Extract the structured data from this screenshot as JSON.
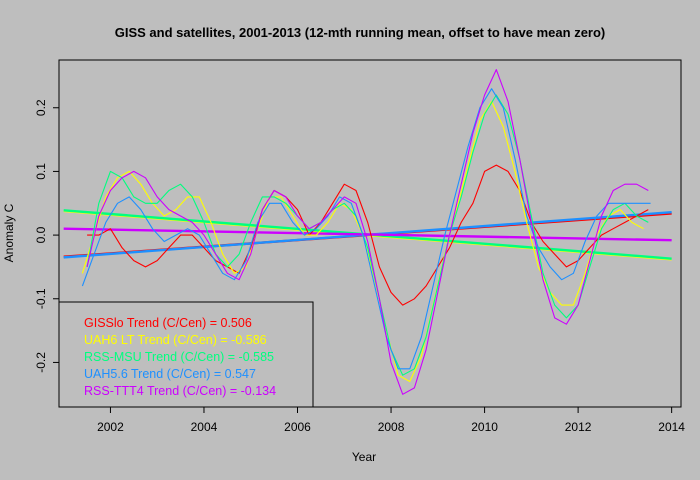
{
  "chart_data": {
    "type": "line",
    "title": "GISS and satellites, 2001-2013 (12-mth running mean, offset to have mean zero)",
    "xlabel": "Year",
    "ylabel": "Anomaly C",
    "xlim": [
      2000.9,
      2014.2
    ],
    "ylim": [
      -0.27,
      0.275
    ],
    "xticks": [
      2002,
      2004,
      2006,
      2008,
      2010,
      2012,
      2014
    ],
    "yticks": [
      -0.2,
      -0.1,
      0.0,
      0.1,
      0.2
    ],
    "ytick_labels": [
      "-0.2",
      "-0.1",
      "0.0",
      "0.1",
      "0.2"
    ],
    "legend_position": "bottom-left",
    "series": [
      {
        "name": "GISSlo Trend (C/Cen) = 0.506",
        "color": "#ff0000",
        "x": [
          2001.5,
          2001.75,
          2002.0,
          2002.25,
          2002.5,
          2002.75,
          2003.0,
          2003.25,
          2003.5,
          2003.75,
          2004.0,
          2004.25,
          2004.5,
          2004.75,
          2005.0,
          2005.25,
          2005.5,
          2005.75,
          2006.0,
          2006.25,
          2006.5,
          2006.75,
          2007.0,
          2007.25,
          2007.5,
          2007.75,
          2008.0,
          2008.25,
          2008.5,
          2008.75,
          2009.0,
          2009.25,
          2009.5,
          2009.75,
          2010.0,
          2010.25,
          2010.5,
          2010.75,
          2011.0,
          2011.25,
          2011.5,
          2011.75,
          2012.0,
          2012.25,
          2012.5,
          2012.75,
          2013.0,
          2013.25,
          2013.5
        ],
        "y": [
          0.0,
          0.0,
          0.01,
          -0.02,
          -0.04,
          -0.05,
          -0.04,
          -0.02,
          0.0,
          0.0,
          -0.02,
          -0.04,
          -0.05,
          -0.06,
          -0.02,
          0.04,
          0.07,
          0.06,
          0.04,
          0.0,
          0.02,
          0.05,
          0.08,
          0.07,
          0.02,
          -0.05,
          -0.09,
          -0.11,
          -0.1,
          -0.08,
          -0.05,
          -0.02,
          0.02,
          0.05,
          0.1,
          0.11,
          0.1,
          0.07,
          0.02,
          -0.01,
          -0.03,
          -0.05,
          -0.04,
          -0.02,
          0.0,
          0.01,
          0.02,
          0.03,
          0.04
        ]
      },
      {
        "name": "UAH6 LT Trend (C/Cen) = -0.586",
        "color": "#ffff00",
        "x": [
          2001.4,
          2001.65,
          2001.9,
          2002.15,
          2002.4,
          2002.65,
          2002.9,
          2003.15,
          2003.4,
          2003.65,
          2003.9,
          2004.15,
          2004.4,
          2004.65,
          2004.9,
          2005.15,
          2005.4,
          2005.65,
          2005.9,
          2006.15,
          2006.4,
          2006.65,
          2006.9,
          2007.15,
          2007.4,
          2007.65,
          2007.9,
          2008.15,
          2008.4,
          2008.65,
          2008.9,
          2009.15,
          2009.4,
          2009.65,
          2009.9,
          2010.15,
          2010.4,
          2010.65,
          2010.9,
          2011.15,
          2011.4,
          2011.65,
          2011.9,
          2012.15,
          2012.4,
          2012.65,
          2012.9,
          2013.15,
          2013.4
        ],
        "y": [
          -0.06,
          0.0,
          0.06,
          0.09,
          0.1,
          0.08,
          0.05,
          0.03,
          0.04,
          0.06,
          0.06,
          0.02,
          -0.03,
          -0.06,
          -0.05,
          0.01,
          0.06,
          0.06,
          0.03,
          0.0,
          0.0,
          0.02,
          0.05,
          0.04,
          0.0,
          -0.07,
          -0.15,
          -0.22,
          -0.23,
          -0.19,
          -0.11,
          -0.03,
          0.04,
          0.11,
          0.18,
          0.21,
          0.17,
          0.1,
          0.02,
          -0.05,
          -0.09,
          -0.11,
          -0.11,
          -0.06,
          0.0,
          0.03,
          0.04,
          0.02,
          0.01
        ]
      },
      {
        "name": "RSS-MSU Trend (C/Cen) = -0.585",
        "color": "#00ff7f",
        "x": [
          2001.5,
          2001.75,
          2002.0,
          2002.25,
          2002.5,
          2002.75,
          2003.0,
          2003.25,
          2003.5,
          2003.75,
          2004.0,
          2004.25,
          2004.5,
          2004.75,
          2005.0,
          2005.25,
          2005.5,
          2005.75,
          2006.0,
          2006.25,
          2006.5,
          2006.75,
          2007.0,
          2007.25,
          2007.5,
          2007.75,
          2008.0,
          2008.25,
          2008.5,
          2008.75,
          2009.0,
          2009.25,
          2009.5,
          2009.75,
          2010.0,
          2010.25,
          2010.5,
          2010.75,
          2011.0,
          2011.25,
          2011.5,
          2011.75,
          2012.0,
          2012.25,
          2012.5,
          2012.75,
          2013.0,
          2013.25,
          2013.5
        ],
        "y": [
          -0.05,
          0.05,
          0.1,
          0.09,
          0.06,
          0.05,
          0.05,
          0.07,
          0.08,
          0.06,
          0.02,
          -0.03,
          -0.05,
          -0.03,
          0.02,
          0.06,
          0.06,
          0.05,
          0.03,
          0.01,
          0.02,
          0.04,
          0.05,
          0.03,
          -0.02,
          -0.1,
          -0.18,
          -0.22,
          -0.21,
          -0.16,
          -0.08,
          0.0,
          0.06,
          0.13,
          0.19,
          0.22,
          0.19,
          0.12,
          0.03,
          -0.06,
          -0.11,
          -0.13,
          -0.11,
          -0.05,
          0.01,
          0.04,
          0.05,
          0.03,
          0.02
        ]
      },
      {
        "name": "UAH5.6 Trend (C/Cen) = 0.547",
        "color": "#1e90ff",
        "x": [
          2001.4,
          2001.65,
          2001.9,
          2002.15,
          2002.4,
          2002.65,
          2002.9,
          2003.15,
          2003.4,
          2003.65,
          2003.9,
          2004.15,
          2004.4,
          2004.65,
          2004.9,
          2005.15,
          2005.4,
          2005.65,
          2005.9,
          2006.15,
          2006.4,
          2006.65,
          2006.9,
          2007.15,
          2007.4,
          2007.65,
          2007.9,
          2008.15,
          2008.4,
          2008.65,
          2008.9,
          2009.15,
          2009.4,
          2009.65,
          2009.9,
          2010.15,
          2010.4,
          2010.65,
          2010.9,
          2011.15,
          2011.4,
          2011.65,
          2011.9,
          2012.15,
          2012.4,
          2012.65,
          2012.9,
          2013.15,
          2013.4,
          2013.55
        ],
        "y": [
          -0.08,
          -0.03,
          0.02,
          0.05,
          0.06,
          0.04,
          0.01,
          -0.01,
          0.0,
          0.01,
          0.0,
          -0.03,
          -0.06,
          -0.07,
          -0.04,
          0.02,
          0.05,
          0.05,
          0.02,
          0.0,
          0.01,
          0.03,
          0.06,
          0.05,
          0.0,
          -0.08,
          -0.16,
          -0.21,
          -0.21,
          -0.16,
          -0.08,
          0.0,
          0.07,
          0.14,
          0.2,
          0.23,
          0.2,
          0.12,
          0.03,
          -0.02,
          -0.05,
          -0.07,
          -0.06,
          -0.01,
          0.03,
          0.05,
          0.05,
          0.05,
          0.05,
          0.05
        ]
      },
      {
        "name": "RSS-TTT4 Trend (C/Cen) = -0.134",
        "color": "#cc00ff",
        "x": [
          2001.5,
          2001.75,
          2002.0,
          2002.25,
          2002.5,
          2002.75,
          2003.0,
          2003.25,
          2003.5,
          2003.75,
          2004.0,
          2004.25,
          2004.5,
          2004.75,
          2005.0,
          2005.25,
          2005.5,
          2005.75,
          2006.0,
          2006.25,
          2006.5,
          2006.75,
          2007.0,
          2007.25,
          2007.5,
          2007.75,
          2008.0,
          2008.25,
          2008.5,
          2008.75,
          2009.0,
          2009.25,
          2009.5,
          2009.75,
          2010.0,
          2010.25,
          2010.5,
          2010.75,
          2011.0,
          2011.25,
          2011.5,
          2011.75,
          2012.0,
          2012.25,
          2012.5,
          2012.75,
          2013.0,
          2013.25,
          2013.5
        ],
        "y": [
          -0.05,
          0.03,
          0.07,
          0.09,
          0.1,
          0.09,
          0.06,
          0.04,
          0.03,
          0.02,
          0.0,
          -0.03,
          -0.06,
          -0.07,
          -0.03,
          0.04,
          0.07,
          0.06,
          0.03,
          0.01,
          0.02,
          0.04,
          0.06,
          0.05,
          -0.01,
          -0.1,
          -0.2,
          -0.25,
          -0.24,
          -0.18,
          -0.09,
          0.0,
          0.08,
          0.16,
          0.22,
          0.26,
          0.21,
          0.12,
          0.02,
          -0.07,
          -0.13,
          -0.14,
          -0.11,
          -0.04,
          0.03,
          0.07,
          0.08,
          0.08,
          0.07
        ]
      }
    ],
    "trends": [
      {
        "color": "#ff0000",
        "x": [
          2001.0,
          2014.0
        ],
        "y": [
          -0.034,
          0.034
        ]
      },
      {
        "color": "#ffff00",
        "x": [
          2001.0,
          2014.0
        ],
        "y": [
          0.038,
          -0.038
        ]
      },
      {
        "color": "#00ff7f",
        "x": [
          2001.0,
          2014.0
        ],
        "y": [
          0.039,
          -0.037
        ]
      },
      {
        "color": "#1e90ff",
        "x": [
          2001.0,
          2014.0
        ],
        "y": [
          -0.035,
          0.036
        ]
      },
      {
        "color": "#cc00ff",
        "x": [
          2001.0,
          2014.0
        ],
        "y": [
          0.01,
          -0.008
        ]
      }
    ]
  }
}
